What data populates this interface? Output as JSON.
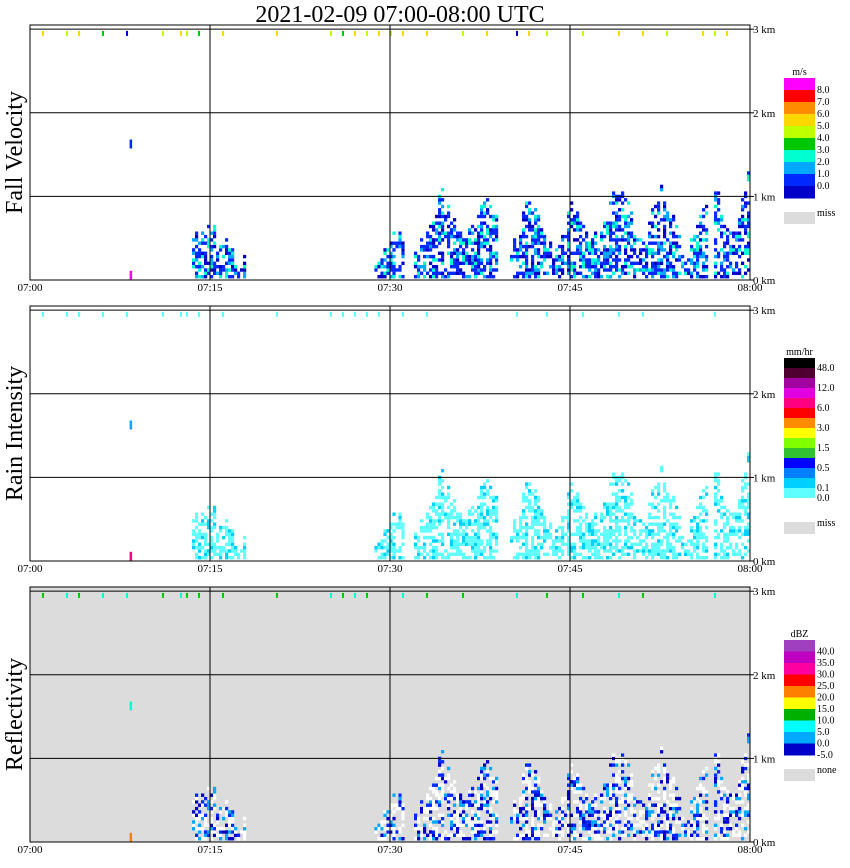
{
  "title": "2021-02-09   07:00-08:00 UTC",
  "x_ticks": [
    "07:00",
    "07:15",
    "07:30",
    "07:45",
    "08:00"
  ],
  "y_ticks": [
    "3 km",
    "2 km",
    "1 km",
    "0 km"
  ],
  "colors": {
    "grid": "#000000",
    "missing": "#dcdcdc"
  },
  "chart_data": [
    {
      "type": "heatmap",
      "ylabel": "Fall Velocity",
      "xlim": [
        "07:00",
        "08:00"
      ],
      "ylim_km": [
        0,
        3.05
      ],
      "background": "#ffffff",
      "legend": {
        "unit": "m/s",
        "labels": [
          "8.0",
          "7.0",
          "6.0",
          "5.0",
          "4.0",
          "3.0",
          "2.0",
          "1.0",
          "0.0"
        ],
        "colors": [
          "#ff00ff",
          "#ff0000",
          "#ff8c00",
          "#ffd700",
          "#bfff00",
          "#00c800",
          "#00ffd0",
          "#00a8ff",
          "#0028ff",
          "#0000c8"
        ],
        "missing_label": "miss"
      },
      "top_echoes": [
        {
          "t": 1,
          "c": "#ffd700"
        },
        {
          "t": 3,
          "c": "#bfff00"
        },
        {
          "t": 4,
          "c": "#ffd700"
        },
        {
          "t": 6,
          "c": "#00c800"
        },
        {
          "t": 8,
          "c": "#0000c8"
        },
        {
          "t": 11,
          "c": "#bfff00"
        },
        {
          "t": 12.5,
          "c": "#ffd700"
        },
        {
          "t": 13,
          "c": "#bfff00"
        },
        {
          "t": 14,
          "c": "#00c800"
        },
        {
          "t": 16,
          "c": "#ffd700"
        },
        {
          "t": 20.5,
          "c": "#ffd700"
        },
        {
          "t": 25,
          "c": "#bfff00"
        },
        {
          "t": 26,
          "c": "#00c800"
        },
        {
          "t": 27,
          "c": "#ffd700"
        },
        {
          "t": 28,
          "c": "#bfff00"
        },
        {
          "t": 29,
          "c": "#ffd700"
        },
        {
          "t": 30,
          "c": "#bfff00"
        },
        {
          "t": 31,
          "c": "#ffd700"
        },
        {
          "t": 33,
          "c": "#ffd700"
        },
        {
          "t": 36,
          "c": "#bfff00"
        },
        {
          "t": 38,
          "c": "#ffd700"
        },
        {
          "t": 40.5,
          "c": "#0000c8"
        },
        {
          "t": 41.5,
          "c": "#ffd700"
        },
        {
          "t": 43,
          "c": "#bfff00"
        },
        {
          "t": 46,
          "c": "#bfff00"
        },
        {
          "t": 49,
          "c": "#ffd700"
        },
        {
          "t": 51,
          "c": "#ffd700"
        },
        {
          "t": 53,
          "c": "#bfff00"
        },
        {
          "t": 56,
          "c": "#ffd700"
        },
        {
          "t": 57,
          "c": "#bfff00"
        },
        {
          "t": 58,
          "c": "#ffd700"
        }
      ],
      "features": [
        {
          "t": 8.3,
          "h": 1.62,
          "c": "#0028ff"
        },
        {
          "t": 8.3,
          "h": 0.05,
          "c": "#ff00ff"
        }
      ],
      "rain": {
        "colors": [
          "#0028ff",
          "#0000c8",
          "#00a8ff",
          "#0028ff",
          "#00ffd0"
        ],
        "seed": 7
      }
    },
    {
      "type": "heatmap",
      "ylabel": "Rain Intensity",
      "xlim": [
        "07:00",
        "08:00"
      ],
      "ylim_km": [
        0,
        3.05
      ],
      "background": "#ffffff",
      "legend": {
        "unit": "mm/hr",
        "labels": [
          "48.0",
          "",
          "12.0",
          "",
          "6.0",
          "",
          "3.0",
          "",
          "1.5",
          "",
          "0.5",
          "",
          "0.1",
          "0.0"
        ],
        "colors": [
          "#000000",
          "#500030",
          "#a000a0",
          "#e000e0",
          "#ff0080",
          "#ff0000",
          "#ff8c00",
          "#ffff00",
          "#80ff00",
          "#30c030",
          "#0000ff",
          "#0080ff",
          "#00d0ff",
          "#60ffff",
          "#ffffff"
        ],
        "missing_label": "miss"
      },
      "top_echoes": [
        {
          "t": 1,
          "c": "#60ffff"
        },
        {
          "t": 3,
          "c": "#60ffff"
        },
        {
          "t": 4,
          "c": "#60ffff"
        },
        {
          "t": 6,
          "c": "#60ffff"
        },
        {
          "t": 8,
          "c": "#60ffff"
        },
        {
          "t": 11,
          "c": "#60ffff"
        },
        {
          "t": 12.5,
          "c": "#60ffff"
        },
        {
          "t": 13,
          "c": "#60ffff"
        },
        {
          "t": 14,
          "c": "#60ffff"
        },
        {
          "t": 16,
          "c": "#60ffff"
        },
        {
          "t": 20.5,
          "c": "#60ffff"
        },
        {
          "t": 25,
          "c": "#60ffff"
        },
        {
          "t": 26,
          "c": "#60ffff"
        },
        {
          "t": 27,
          "c": "#60ffff"
        },
        {
          "t": 28,
          "c": "#60ffff"
        },
        {
          "t": 29,
          "c": "#60ffff"
        },
        {
          "t": 31,
          "c": "#60ffff"
        },
        {
          "t": 33,
          "c": "#60ffff"
        },
        {
          "t": 40.5,
          "c": "#60ffff"
        },
        {
          "t": 43,
          "c": "#60ffff"
        },
        {
          "t": 46,
          "c": "#60ffff"
        },
        {
          "t": 49,
          "c": "#60ffff"
        },
        {
          "t": 51,
          "c": "#60ffff"
        },
        {
          "t": 57,
          "c": "#60ffff"
        }
      ],
      "features": [
        {
          "t": 8.3,
          "h": 1.62,
          "c": "#00a8ff"
        },
        {
          "t": 8.3,
          "h": 0.05,
          "c": "#ff0080"
        }
      ],
      "rain": {
        "colors": [
          "#60ffff",
          "#60ffff",
          "#60ffff",
          "#60ffff",
          "#00d0ff"
        ],
        "seed": 7
      }
    },
    {
      "type": "heatmap",
      "ylabel": "Reflectivity",
      "xlim": [
        "07:00",
        "08:00"
      ],
      "ylim_km": [
        0,
        3.05
      ],
      "background": "#dcdcdc",
      "legend": {
        "unit": "dBZ",
        "labels": [
          "40.0",
          "35.0",
          "30.0",
          "25.0",
          "20.0",
          "15.0",
          "10.0",
          "5.0",
          "0.0",
          "-5.0"
        ],
        "colors": [
          "#a040c0",
          "#c000c0",
          "#ff00a0",
          "#ff0000",
          "#ff8000",
          "#ffff00",
          "#00b000",
          "#00ffff",
          "#00a8ff",
          "#0000c8"
        ],
        "missing_label": "none"
      },
      "top_echoes": [
        {
          "t": 1,
          "c": "#00c800"
        },
        {
          "t": 3,
          "c": "#00ffd0"
        },
        {
          "t": 4,
          "c": "#00c800"
        },
        {
          "t": 6,
          "c": "#00ffd0"
        },
        {
          "t": 8,
          "c": "#00ffd0"
        },
        {
          "t": 11,
          "c": "#00c800"
        },
        {
          "t": 12.5,
          "c": "#00ffd0"
        },
        {
          "t": 13,
          "c": "#00c800"
        },
        {
          "t": 14,
          "c": "#00c800"
        },
        {
          "t": 16,
          "c": "#00c800"
        },
        {
          "t": 20.5,
          "c": "#00c800"
        },
        {
          "t": 25,
          "c": "#00ffd0"
        },
        {
          "t": 26,
          "c": "#00c800"
        },
        {
          "t": 27,
          "c": "#00ffd0"
        },
        {
          "t": 28,
          "c": "#00c800"
        },
        {
          "t": 31,
          "c": "#00ffd0"
        },
        {
          "t": 33,
          "c": "#00c800"
        },
        {
          "t": 36,
          "c": "#00c800"
        },
        {
          "t": 40.5,
          "c": "#00ffd0"
        },
        {
          "t": 43,
          "c": "#00c800"
        },
        {
          "t": 46,
          "c": "#00c800"
        },
        {
          "t": 49,
          "c": "#00ffd0"
        },
        {
          "t": 51,
          "c": "#00c800"
        },
        {
          "t": 57,
          "c": "#00ffd0"
        }
      ],
      "features": [
        {
          "t": 8.3,
          "h": 1.62,
          "c": "#00ffd0"
        },
        {
          "t": 8.3,
          "h": 0.05,
          "c": "#ff8000"
        }
      ],
      "rain": {
        "colors": [
          "#ffffff",
          "#ffffff",
          "#ffffff",
          "#0000c8",
          "#0028ff",
          "#00a8ff"
        ],
        "seed": 7
      }
    }
  ]
}
